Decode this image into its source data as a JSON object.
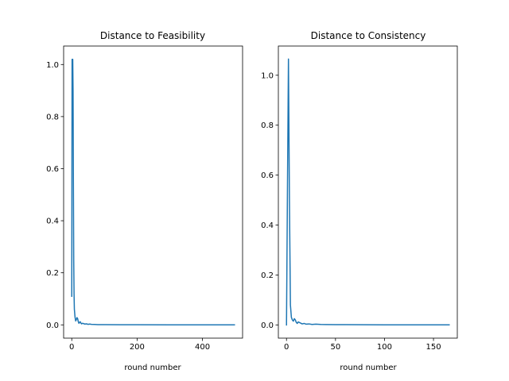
{
  "chart_data": [
    {
      "type": "line",
      "title": "Distance to Feasibility",
      "xlabel": "round number",
      "ylabel": "",
      "xlim": [
        -24.9,
        522.9
      ],
      "ylim": [
        -0.051,
        1.071
      ],
      "xticks": [
        0,
        200,
        400
      ],
      "xtick_labels": [
        "0",
        "200",
        "400"
      ],
      "yticks": [
        0.0,
        0.2,
        0.4,
        0.6,
        0.8,
        1.0
      ],
      "ytick_labels": [
        "0.0",
        "0.2",
        "0.4",
        "0.6",
        "0.8",
        "1.0"
      ],
      "grid": false,
      "color": "#1f77b4",
      "series": [
        {
          "x": [
            0,
            1,
            2,
            3,
            4,
            5,
            6,
            7,
            8,
            10,
            12,
            14,
            16,
            18,
            20,
            22,
            24,
            26,
            28,
            30,
            33,
            36,
            40,
            45,
            50,
            55,
            60,
            70,
            80,
            90,
            100,
            150,
            200,
            300,
            400,
            498
          ],
          "y": [
            0.11,
            1.02,
            1.02,
            1.02,
            0.9,
            0.55,
            0.25,
            0.12,
            0.06,
            0.03,
            0.015,
            0.02,
            0.028,
            0.024,
            0.012,
            0.006,
            0.01,
            0.012,
            0.007,
            0.004,
            0.006,
            0.005,
            0.003,
            0.004,
            0.002,
            0.003,
            0.002,
            0.0015,
            0.001,
            0.001,
            0.0008,
            0.0005,
            0.0003,
            0.0002,
            0.0001,
            0.0001
          ]
        }
      ]
    },
    {
      "type": "line",
      "title": "Distance to Consistency",
      "xlabel": "round number",
      "ylabel": "",
      "xlim": [
        -8.3,
        174.3
      ],
      "ylim": [
        -0.053,
        1.117
      ],
      "xticks": [
        0,
        50,
        100,
        150
      ],
      "xtick_labels": [
        "0",
        "50",
        "100",
        "150"
      ],
      "yticks": [
        0.0,
        0.2,
        0.4,
        0.6,
        0.8,
        1.0
      ],
      "ytick_labels": [
        "0.0",
        "0.2",
        "0.4",
        "0.6",
        "0.8",
        "1.0"
      ],
      "grid": false,
      "color": "#1f77b4",
      "series": [
        {
          "x": [
            0,
            1,
            2,
            3,
            4,
            5,
            6,
            7,
            8,
            9,
            10,
            11,
            12,
            14,
            16,
            18,
            20,
            23,
            26,
            30,
            35,
            40,
            50,
            60,
            80,
            100,
            130,
            166
          ],
          "y": [
            0.0,
            0.55,
            1.065,
            0.5,
            0.08,
            0.03,
            0.02,
            0.015,
            0.025,
            0.02,
            0.01,
            0.006,
            0.012,
            0.008,
            0.004,
            0.006,
            0.003,
            0.004,
            0.002,
            0.003,
            0.002,
            0.0015,
            0.001,
            0.001,
            0.0006,
            0.0004,
            0.0002,
            0.0001
          ]
        }
      ]
    }
  ]
}
